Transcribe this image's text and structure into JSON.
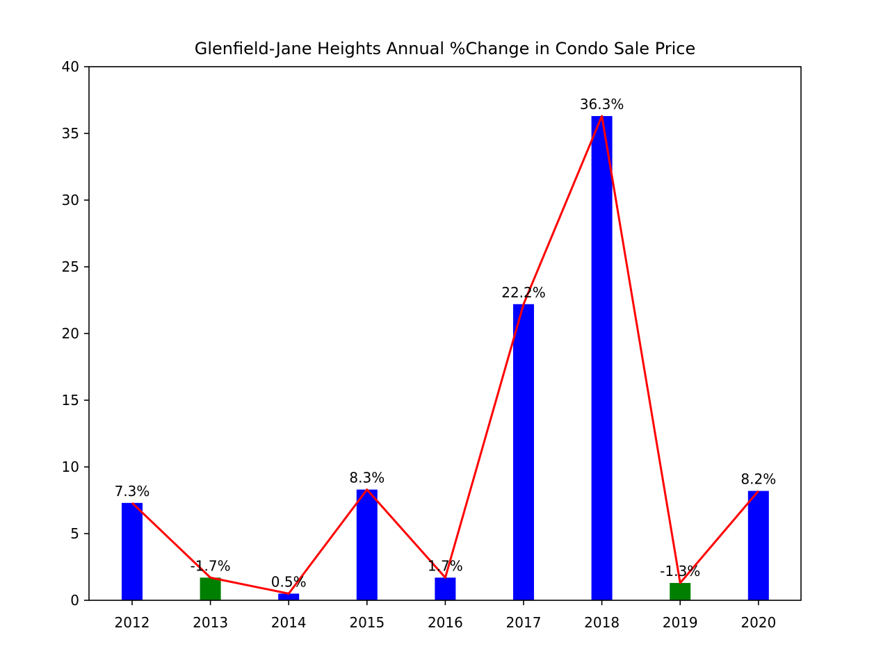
{
  "chart_data": {
    "type": "bar",
    "title": "Glenfield-Jane Heights Annual %Change in Condo Sale Price",
    "xlabel": "",
    "ylabel": "",
    "categories": [
      "2012",
      "2013",
      "2014",
      "2015",
      "2016",
      "2017",
      "2018",
      "2019",
      "2020"
    ],
    "values": [
      7.3,
      1.7,
      0.5,
      8.3,
      1.7,
      22.2,
      36.3,
      1.3,
      8.2
    ],
    "bar_colors": [
      "#0000ff",
      "#008000",
      "#0000ff",
      "#0000ff",
      "#0000ff",
      "#0000ff",
      "#0000ff",
      "#008000",
      "#0000ff"
    ],
    "data_labels": [
      "7.3%",
      "-1.7%",
      "0.5%",
      "8.3%",
      "1.7%",
      "22.2%",
      "36.3%",
      "-1.3%",
      "8.2%"
    ],
    "line": {
      "values": [
        7.3,
        1.7,
        0.5,
        8.3,
        1.7,
        22.2,
        36.3,
        1.3,
        8.2
      ],
      "color": "#ff0000"
    },
    "ylim": [
      0,
      40
    ],
    "yticks": [
      "0",
      "5",
      "10",
      "15",
      "20",
      "25",
      "30",
      "35",
      "40"
    ],
    "grid": false,
    "legend": "none"
  }
}
